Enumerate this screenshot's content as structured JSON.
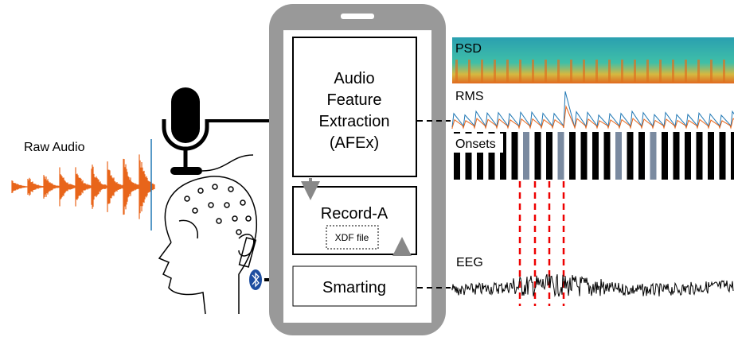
{
  "left": {
    "raw_audio": "Raw Audio"
  },
  "phone": {
    "afex": [
      "Audio",
      "Feature",
      "Extraction",
      "(AFEx)"
    ],
    "record": "Record-A",
    "file": "XDF file",
    "smarting": "Smarting"
  },
  "right": {
    "psd": "PSD",
    "rms": "RMS",
    "onsets": "Onsets",
    "eeg": "EEG"
  }
}
